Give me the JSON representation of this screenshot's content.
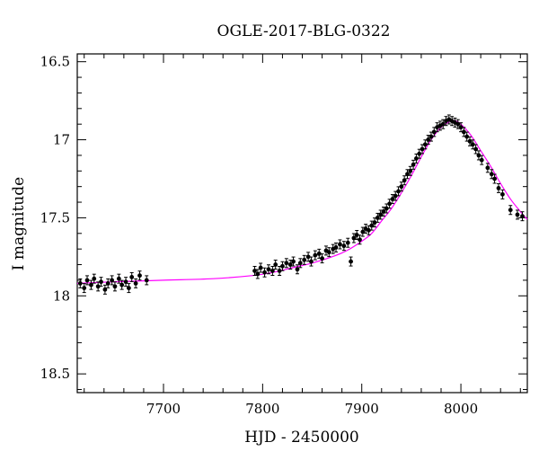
{
  "chart_data": {
    "type": "scatter",
    "title": "OGLE-2017-BLG-0322",
    "xlabel": "HJD - 2450000",
    "ylabel": "I magnitude",
    "xlim": [
      7613,
      8067
    ],
    "ylim": [
      16.45,
      18.62
    ],
    "y_inverted": true,
    "x_ticks": [
      7700,
      7800,
      7900,
      8000
    ],
    "x_tick_labels": [
      "7700",
      "7800",
      "7900",
      "8000"
    ],
    "y_ticks": [
      16.5,
      17,
      17.5,
      18,
      18.5
    ],
    "y_tick_labels": [
      "16.5",
      "17",
      "17.5",
      "18",
      "18.5"
    ],
    "grid": false,
    "colors": {
      "data": "#000000",
      "model": "#ff00ff"
    },
    "model": {
      "name": "",
      "color": "#ff00ff",
      "points": [
        [
          7613,
          17.92
        ],
        [
          7650,
          17.91
        ],
        [
          7700,
          17.9
        ],
        [
          7750,
          17.89
        ],
        [
          7790,
          17.87
        ],
        [
          7810,
          17.85
        ],
        [
          7830,
          17.82
        ],
        [
          7850,
          17.79
        ],
        [
          7870,
          17.75
        ],
        [
          7885,
          17.71
        ],
        [
          7900,
          17.65
        ],
        [
          7910,
          17.6
        ],
        [
          7920,
          17.52
        ],
        [
          7930,
          17.44
        ],
        [
          7940,
          17.34
        ],
        [
          7950,
          17.23
        ],
        [
          7960,
          17.11
        ],
        [
          7970,
          17.0
        ],
        [
          7980,
          16.92
        ],
        [
          7990,
          16.88
        ],
        [
          7995,
          16.88
        ],
        [
          8000,
          16.9
        ],
        [
          8010,
          16.97
        ],
        [
          8020,
          17.07
        ],
        [
          8030,
          17.17
        ],
        [
          8040,
          17.28
        ],
        [
          8050,
          17.38
        ],
        [
          8060,
          17.46
        ],
        [
          8067,
          17.51
        ]
      ]
    },
    "series": [
      {
        "name": "",
        "values": [
          [
            7616,
            17.92
          ],
          [
            7620,
            17.95
          ],
          [
            7623,
            17.9
          ],
          [
            7627,
            17.93
          ],
          [
            7630,
            17.89
          ],
          [
            7634,
            17.94
          ],
          [
            7637,
            17.91
          ],
          [
            7641,
            17.96
          ],
          [
            7644,
            17.92
          ],
          [
            7648,
            17.9
          ],
          [
            7651,
            17.94
          ],
          [
            7655,
            17.89
          ],
          [
            7658,
            17.93
          ],
          [
            7662,
            17.91
          ],
          [
            7665,
            17.95
          ],
          [
            7668,
            17.88
          ],
          [
            7672,
            17.92
          ],
          [
            7676,
            17.87
          ],
          [
            7683,
            17.9
          ],
          [
            7792,
            17.84
          ],
          [
            7795,
            17.86
          ],
          [
            7798,
            17.82
          ],
          [
            7802,
            17.85
          ],
          [
            7806,
            17.83
          ],
          [
            7810,
            17.84
          ],
          [
            7813,
            17.8
          ],
          [
            7817,
            17.84
          ],
          [
            7820,
            17.81
          ],
          [
            7824,
            17.79
          ],
          [
            7828,
            17.8
          ],
          [
            7831,
            17.78
          ],
          [
            7835,
            17.83
          ],
          [
            7838,
            17.79
          ],
          [
            7842,
            17.77
          ],
          [
            7846,
            17.75
          ],
          [
            7849,
            17.78
          ],
          [
            7853,
            17.74
          ],
          [
            7857,
            17.73
          ],
          [
            7860,
            17.76
          ],
          [
            7864,
            17.71
          ],
          [
            7867,
            17.72
          ],
          [
            7871,
            17.7
          ],
          [
            7874,
            17.69
          ],
          [
            7878,
            17.67
          ],
          [
            7882,
            17.68
          ],
          [
            7886,
            17.66
          ],
          [
            7889,
            17.78
          ],
          [
            7892,
            17.63
          ],
          [
            7895,
            17.61
          ],
          [
            7898,
            17.64
          ],
          [
            7901,
            17.59
          ],
          [
            7904,
            17.57
          ],
          [
            7907,
            17.58
          ],
          [
            7910,
            17.55
          ],
          [
            7913,
            17.53
          ],
          [
            7916,
            17.5
          ],
          [
            7919,
            17.48
          ],
          [
            7922,
            17.46
          ],
          [
            7925,
            17.44
          ],
          [
            7928,
            17.41
          ],
          [
            7931,
            17.38
          ],
          [
            7934,
            17.36
          ],
          [
            7937,
            17.33
          ],
          [
            7940,
            17.3
          ],
          [
            7943,
            17.26
          ],
          [
            7946,
            17.22
          ],
          [
            7949,
            17.2
          ],
          [
            7952,
            17.16
          ],
          [
            7955,
            17.12
          ],
          [
            7958,
            17.09
          ],
          [
            7961,
            17.06
          ],
          [
            7964,
            17.03
          ],
          [
            7967,
            17.0
          ],
          [
            7970,
            16.98
          ],
          [
            7973,
            16.95
          ],
          [
            7976,
            16.92
          ],
          [
            7979,
            16.91
          ],
          [
            7982,
            16.9
          ],
          [
            7985,
            16.88
          ],
          [
            7988,
            16.87
          ],
          [
            7991,
            16.88
          ],
          [
            7994,
            16.89
          ],
          [
            7997,
            16.9
          ],
          [
            8000,
            16.92
          ],
          [
            8003,
            16.95
          ],
          [
            8006,
            16.98
          ],
          [
            8009,
            17.01
          ],
          [
            8012,
            17.03
          ],
          [
            8015,
            17.06
          ],
          [
            8018,
            17.1
          ],
          [
            8021,
            17.13
          ],
          [
            8027,
            17.18
          ],
          [
            8031,
            17.22
          ],
          [
            8034,
            17.25
          ],
          [
            8038,
            17.31
          ],
          [
            8042,
            17.35
          ],
          [
            8050,
            17.45
          ],
          [
            8057,
            17.48
          ],
          [
            8062,
            17.49
          ]
        ]
      }
    ]
  }
}
